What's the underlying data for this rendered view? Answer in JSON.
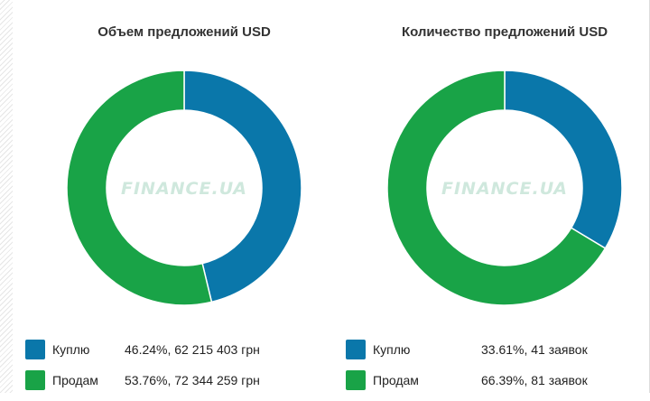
{
  "colors": {
    "buy": "#0a77aa",
    "sell": "#19a347",
    "watermark": "#cfe8dd"
  },
  "watermark": "FINANCE.UA",
  "chart_data": [
    {
      "type": "pie",
      "title": "Объем предложений USD",
      "donut": true,
      "start_angle_deg": 0,
      "legend_position": "bottom",
      "series": [
        {
          "name": "Куплю",
          "value": 46.24,
          "label": "46.24%, 62 215 403 грн"
        },
        {
          "name": "Продам",
          "value": 53.76,
          "label": "53.76%, 72 344 259 грн"
        }
      ]
    },
    {
      "type": "pie",
      "title": "Количество предложений USD",
      "donut": true,
      "start_angle_deg": 0,
      "legend_position": "bottom",
      "series": [
        {
          "name": "Куплю",
          "value": 33.61,
          "label": "33.61%, 41 заявок"
        },
        {
          "name": "Продам",
          "value": 66.39,
          "label": "66.39%, 81 заявок"
        }
      ]
    }
  ]
}
